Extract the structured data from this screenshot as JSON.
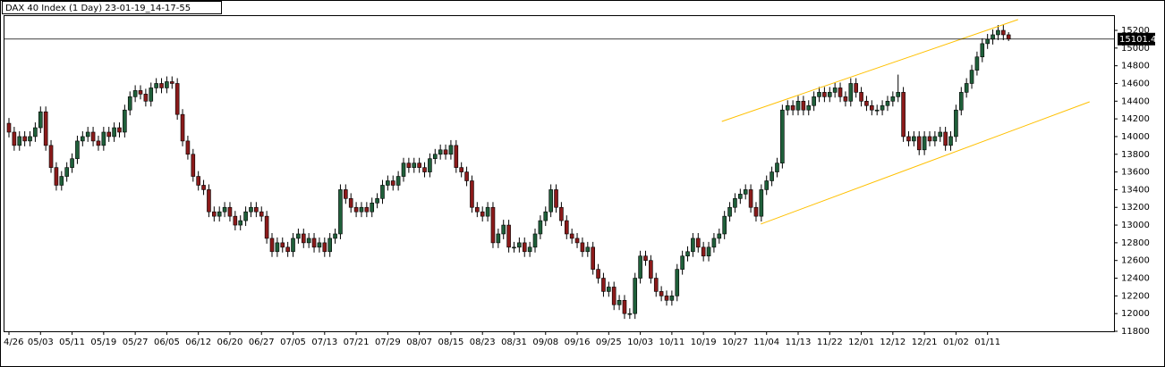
{
  "chart_data": {
    "type": "candlestick",
    "title": "DAX 40 Index (1 Day) 23-01-19_14-17-55",
    "up_color": "#1f5f3a",
    "down_color": "#8b1a1a",
    "wick_color": "#000000",
    "categories": [
      "4/26",
      null,
      null,
      null,
      null,
      null,
      "05/03",
      null,
      null,
      null,
      null,
      null,
      "05/11",
      null,
      null,
      null,
      null,
      null,
      "05/19",
      null,
      null,
      null,
      null,
      null,
      "05/27",
      null,
      null,
      null,
      null,
      null,
      "06/05",
      null,
      null,
      null,
      null,
      null,
      "06/12",
      null,
      null,
      null,
      null,
      null,
      "06/20",
      null,
      null,
      null,
      null,
      null,
      "06/27",
      null,
      null,
      null,
      null,
      null,
      "07/05",
      null,
      null,
      null,
      null,
      null,
      "07/13",
      null,
      null,
      null,
      null,
      null,
      "07/21",
      null,
      null,
      null,
      null,
      null,
      "07/29",
      null,
      null,
      null,
      null,
      null,
      "08/07",
      null,
      null,
      null,
      null,
      null,
      "08/15",
      null,
      null,
      null,
      null,
      null,
      "08/23",
      null,
      null,
      null,
      null,
      null,
      "08/31",
      null,
      null,
      null,
      null,
      null,
      "09/08",
      null,
      null,
      null,
      null,
      null,
      "09/16",
      null,
      null,
      null,
      null,
      null,
      "09/25",
      null,
      null,
      null,
      null,
      null,
      "10/03",
      null,
      null,
      null,
      null,
      null,
      "10/11",
      null,
      null,
      null,
      null,
      null,
      "10/19",
      null,
      null,
      null,
      null,
      null,
      "10/27",
      null,
      null,
      null,
      null,
      null,
      "11/04",
      null,
      null,
      null,
      null,
      null,
      "11/13",
      null,
      null,
      null,
      null,
      null,
      "11/22",
      null,
      null,
      null,
      null,
      null,
      "12/01",
      null,
      null,
      null,
      null,
      null,
      "12/12",
      null,
      null,
      null,
      null,
      null,
      "12/21",
      null,
      null,
      null,
      null,
      null,
      "01/02",
      null,
      null,
      null,
      null,
      null,
      "01/11",
      null,
      null,
      null,
      null
    ],
    "open": [
      14150,
      14050,
      13900,
      14000,
      13950,
      14000,
      14100,
      14280,
      13900,
      13650,
      13450,
      13550,
      13650,
      13750,
      13950,
      14000,
      14050,
      13950,
      13900,
      14050,
      14000,
      14100,
      14050,
      14300,
      14450,
      14520,
      14480,
      14400,
      14550,
      14600,
      14550,
      14620,
      14600,
      14250,
      13950,
      13800,
      13550,
      13450,
      13400,
      13150,
      13100,
      13150,
      13200,
      13100,
      13000,
      13050,
      13150,
      13200,
      13150,
      13100,
      12850,
      12700,
      12800,
      12750,
      12700,
      12850,
      12900,
      12800,
      12850,
      12750,
      12800,
      12700,
      12850,
      12900,
      13400,
      13300,
      13200,
      13150,
      13200,
      13150,
      13250,
      13300,
      13450,
      13500,
      13450,
      13550,
      13700,
      13650,
      13700,
      13650,
      13600,
      13750,
      13800,
      13850,
      13800,
      13900,
      13650,
      13600,
      13500,
      13200,
      13150,
      13100,
      13200,
      12800,
      12900,
      13000,
      12750,
      12750,
      12800,
      12700,
      12750,
      12900,
      13050,
      13150,
      13400,
      13200,
      13050,
      12900,
      12850,
      12800,
      12700,
      12750,
      12500,
      12400,
      12250,
      12300,
      12100,
      12150,
      12000,
      12000,
      12400,
      12650,
      12600,
      12400,
      12250,
      12200,
      12150,
      12200,
      12500,
      12650,
      12700,
      12850,
      12750,
      12650,
      12750,
      12850,
      12900,
      13100,
      13200,
      13300,
      13350,
      13400,
      13200,
      13100,
      13400,
      13500,
      13600,
      13700,
      14300,
      14350,
      14300,
      14400,
      14300,
      14350,
      14450,
      14500,
      14450,
      14500,
      14550,
      14450,
      14400,
      14600,
      14500,
      14400,
      14350,
      14300,
      14300,
      14350,
      14400,
      14450,
      14500,
      14000,
      13950,
      14000,
      13850,
      14000,
      13950,
      14000,
      14050,
      13900,
      14000,
      14300,
      14500,
      14600,
      14750,
      14900,
      15050,
      15100,
      15150,
      15200,
      15150
    ],
    "high": [
      14210,
      14110,
      14060,
      14060,
      14060,
      14160,
      14340,
      14340,
      13960,
      13710,
      13610,
      13710,
      13810,
      14010,
      14060,
      14110,
      14110,
      14010,
      14110,
      14110,
      14160,
      14160,
      14360,
      14510,
      14580,
      14580,
      14540,
      14610,
      14660,
      14660,
      14680,
      14680,
      14660,
      14310,
      14010,
      13860,
      13610,
      13510,
      13460,
      13210,
      13210,
      13260,
      13260,
      13160,
      13110,
      13210,
      13260,
      13260,
      13210,
      13160,
      12910,
      12860,
      12860,
      12810,
      12910,
      12960,
      12960,
      12910,
      12910,
      12860,
      12860,
      12910,
      12960,
      13460,
      13460,
      13360,
      13260,
      13260,
      13260,
      13310,
      13360,
      13510,
      13560,
      13560,
      13610,
      13760,
      13760,
      13760,
      13760,
      13710,
      13810,
      13860,
      13910,
      13910,
      13960,
      13960,
      13710,
      13660,
      13560,
      13260,
      13210,
      13260,
      13260,
      12960,
      13060,
      13060,
      12810,
      12860,
      12860,
      12810,
      12960,
      13110,
      13210,
      13460,
      13460,
      13260,
      13110,
      12960,
      12910,
      12860,
      12810,
      12810,
      12560,
      12460,
      12360,
      12360,
      12210,
      12210,
      12060,
      12460,
      12710,
      12710,
      12660,
      12460,
      12310,
      12260,
      12260,
      12560,
      12710,
      12760,
      12910,
      12910,
      12810,
      12810,
      12910,
      12960,
      13160,
      13260,
      13360,
      13410,
      13460,
      13460,
      13260,
      13460,
      13560,
      13660,
      13760,
      14360,
      14410,
      14410,
      14460,
      14460,
      14410,
      14510,
      14560,
      14560,
      14560,
      14610,
      14610,
      14510,
      14660,
      14660,
      14560,
      14460,
      14410,
      14360,
      14410,
      14460,
      14510,
      14700,
      14560,
      14060,
      14060,
      14060,
      14060,
      14060,
      14060,
      14110,
      14110,
      14060,
      14360,
      14560,
      14660,
      14810,
      14960,
      15110,
      15160,
      15210,
      15260,
      15260,
      15180
    ],
    "low": [
      13990,
      13840,
      13840,
      13890,
      13890,
      13940,
      14040,
      13840,
      13590,
      13390,
      13390,
      13490,
      13590,
      13690,
      13890,
      13940,
      13890,
      13840,
      13840,
      13940,
      13940,
      13990,
      13990,
      14240,
      14390,
      14420,
      14340,
      14340,
      14490,
      14490,
      14490,
      14540,
      14190,
      13890,
      13740,
      13490,
      13390,
      13340,
      13090,
      13040,
      13040,
      13090,
      13040,
      12940,
      12940,
      12990,
      13090,
      13090,
      13040,
      12790,
      12640,
      12640,
      12690,
      12640,
      12640,
      12790,
      12740,
      12740,
      12690,
      12690,
      12640,
      12640,
      12790,
      12840,
      13240,
      13140,
      13090,
      13090,
      13090,
      13090,
      13190,
      13240,
      13390,
      13390,
      13390,
      13490,
      13590,
      13590,
      13590,
      13540,
      13540,
      13690,
      13740,
      13740,
      13740,
      13590,
      13540,
      13440,
      13140,
      13090,
      13040,
      13040,
      12740,
      12740,
      12840,
      12690,
      12690,
      12690,
      12640,
      12640,
      12690,
      12840,
      12990,
      13090,
      13140,
      12990,
      12840,
      12790,
      12740,
      12640,
      12640,
      12440,
      12340,
      12190,
      12190,
      12040,
      12040,
      11940,
      11940,
      11940,
      12340,
      12540,
      12340,
      12190,
      12140,
      12090,
      12090,
      12140,
      12440,
      12590,
      12640,
      12690,
      12590,
      12590,
      12690,
      12790,
      12840,
      13040,
      13140,
      13240,
      13290,
      13140,
      13040,
      13040,
      13340,
      13440,
      13540,
      13640,
      14240,
      14240,
      14240,
      14240,
      14240,
      14290,
      14390,
      14390,
      14390,
      14440,
      14390,
      14340,
      14340,
      14440,
      14340,
      14290,
      14240,
      14240,
      14240,
      14290,
      14340,
      14390,
      13940,
      13890,
      13890,
      13790,
      13790,
      13890,
      13890,
      13940,
      13840,
      13840,
      13940,
      14240,
      14440,
      14540,
      14690,
      14840,
      14990,
      15040,
      15090,
      15090,
      15080
    ],
    "close": [
      14050,
      13900,
      14000,
      13950,
      14000,
      14100,
      14280,
      13900,
      13650,
      13450,
      13550,
      13650,
      13750,
      13950,
      14000,
      14050,
      13950,
      13900,
      14050,
      14000,
      14100,
      14050,
      14300,
      14450,
      14520,
      14480,
      14400,
      14550,
      14600,
      14550,
      14620,
      14600,
      14250,
      13950,
      13800,
      13550,
      13450,
      13400,
      13150,
      13100,
      13150,
      13200,
      13100,
      13000,
      13050,
      13150,
      13200,
      13150,
      13100,
      12850,
      12700,
      12800,
      12750,
      12700,
      12850,
      12900,
      12800,
      12850,
      12750,
      12800,
      12700,
      12850,
      12900,
      13400,
      13300,
      13200,
      13150,
      13200,
      13150,
      13250,
      13300,
      13450,
      13500,
      13450,
      13550,
      13700,
      13650,
      13700,
      13650,
      13600,
      13750,
      13800,
      13850,
      13800,
      13900,
      13650,
      13600,
      13500,
      13200,
      13150,
      13100,
      13200,
      12800,
      12900,
      13000,
      12750,
      12750,
      12800,
      12700,
      12750,
      12900,
      13050,
      13150,
      13400,
      13200,
      13050,
      12900,
      12850,
      12800,
      12700,
      12750,
      12500,
      12400,
      12250,
      12300,
      12100,
      12150,
      12000,
      12000,
      12400,
      12650,
      12600,
      12400,
      12250,
      12200,
      12150,
      12200,
      12500,
      12650,
      12700,
      12850,
      12750,
      12650,
      12750,
      12850,
      12900,
      13100,
      13200,
      13300,
      13350,
      13400,
      13200,
      13100,
      13400,
      13500,
      13600,
      13700,
      14300,
      14350,
      14300,
      14400,
      14300,
      14350,
      14450,
      14500,
      14450,
      14500,
      14550,
      14450,
      14400,
      14600,
      14500,
      14400,
      14350,
      14300,
      14300,
      14350,
      14400,
      14450,
      14500,
      14000,
      13950,
      14000,
      13850,
      14000,
      13950,
      14000,
      14050,
      13900,
      14000,
      14300,
      14500,
      14600,
      14750,
      14900,
      15050,
      15100,
      15150,
      15200,
      15150,
      15101.4
    ],
    "trendlines": [
      {
        "color": "#ffc000",
        "x": [
          135.5,
          191.8
        ],
        "y": [
          14171,
          15322
        ]
      },
      {
        "color": "#ffc000",
        "x": [
          142.9,
          205.4
        ],
        "y": [
          13011,
          14393
        ]
      }
    ],
    "ylim": [
      11800,
      15200
    ],
    "yticks": [
      11800,
      12000,
      12200,
      12400,
      12600,
      12800,
      13000,
      13200,
      13400,
      13600,
      13800,
      14000,
      14200,
      14400,
      14600,
      14800,
      15000,
      15200
    ]
  }
}
